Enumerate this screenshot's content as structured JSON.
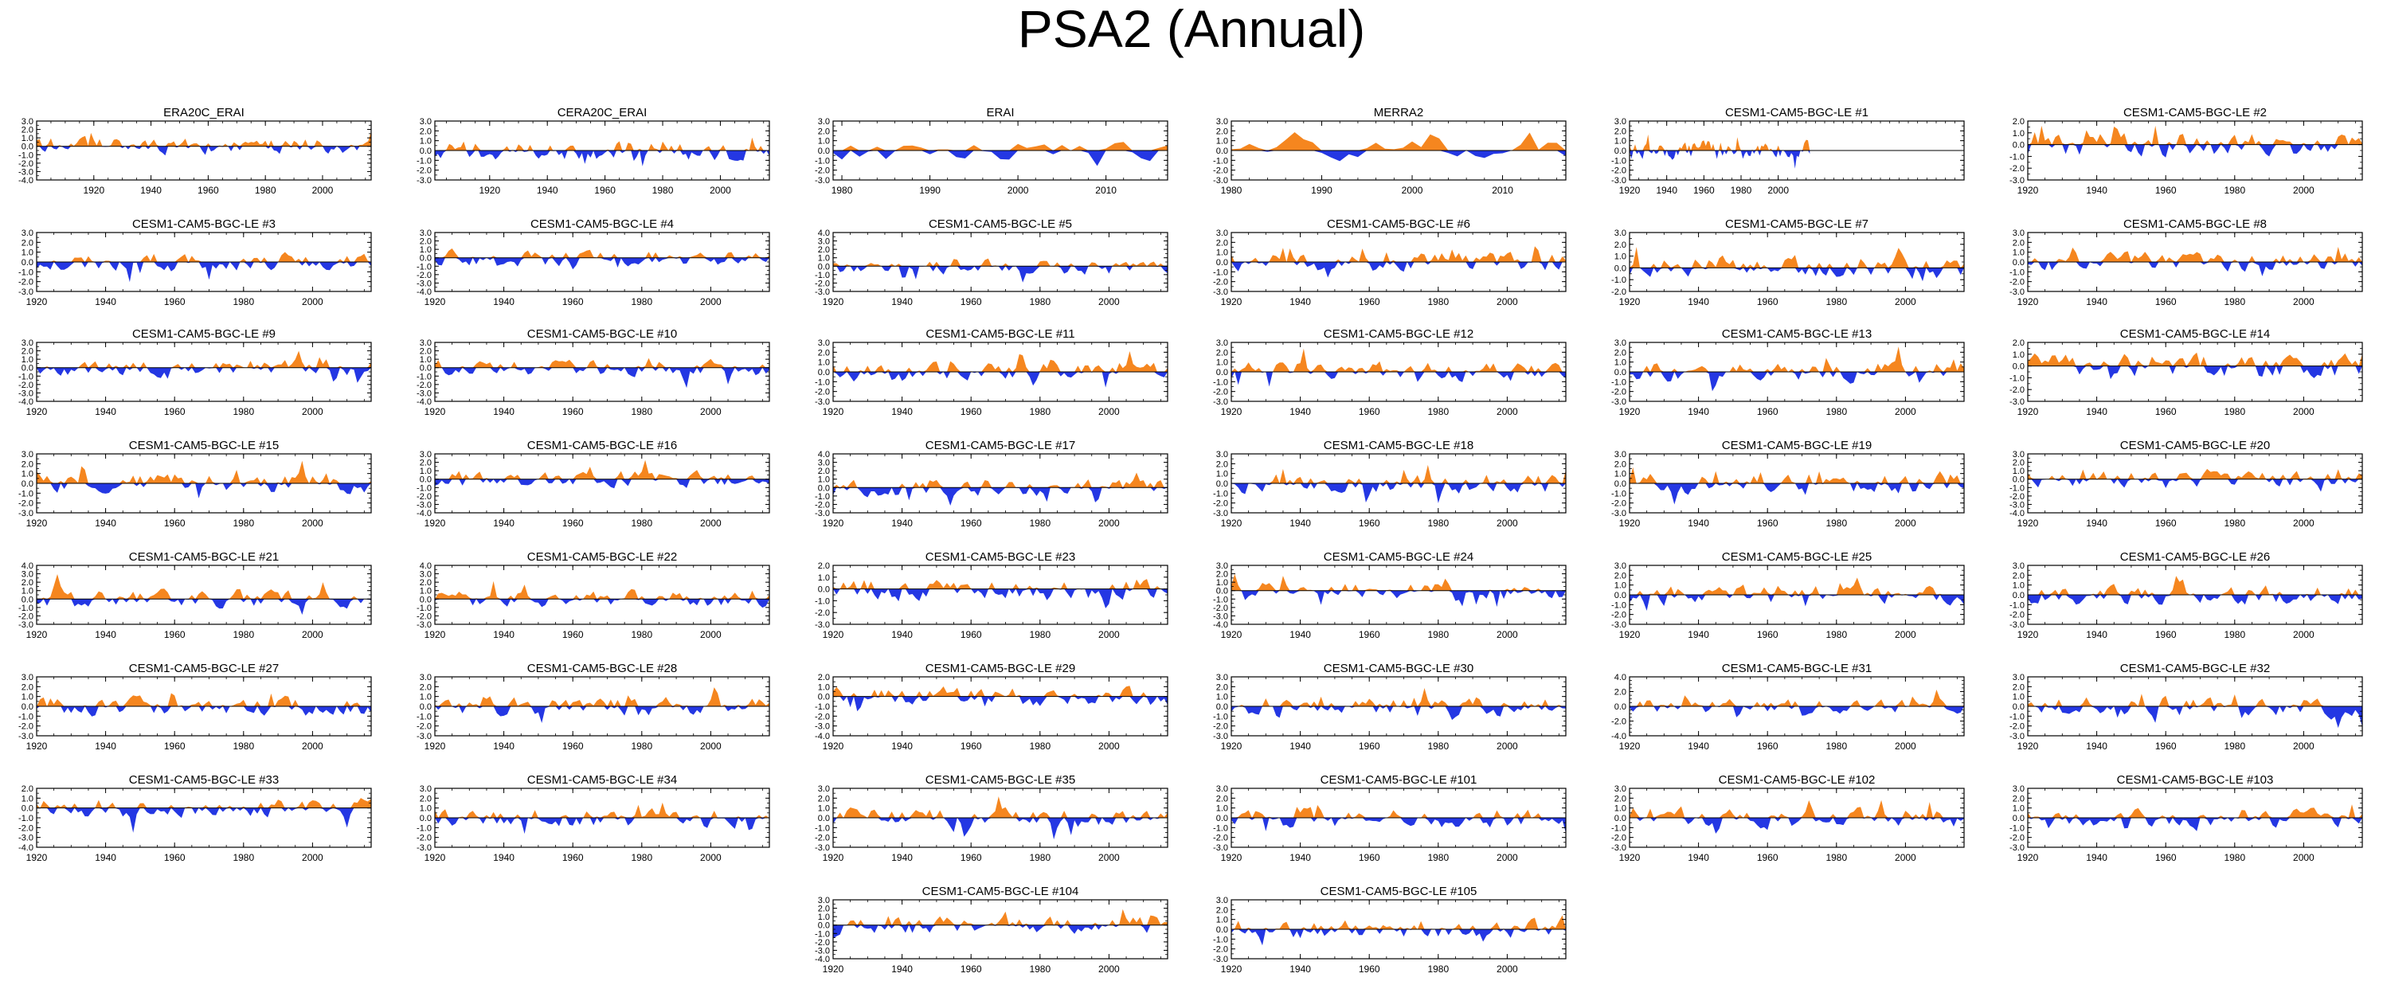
{
  "title": "PSA2 (Annual)",
  "colors": {
    "positive": "#f5861f",
    "negative": "#2437e3",
    "axis": "#000000"
  },
  "chart_data": [
    {
      "type": "area",
      "title": "ERA20C_ERAI",
      "xlim": [
        1900,
        2017
      ],
      "xticks": [
        1920,
        1940,
        1960,
        1980,
        2000
      ],
      "ylim": [
        -4,
        3
      ],
      "yticks": [
        3,
        2,
        1,
        0,
        -1,
        -2,
        -3,
        -4
      ],
      "seed": 11
    },
    {
      "type": "area",
      "title": "CERA20C_ERAI",
      "xlim": [
        1901,
        2017
      ],
      "xticks": [
        1920,
        1940,
        1960,
        1980,
        2000
      ],
      "ylim": [
        -3,
        3
      ],
      "yticks": [
        3,
        2,
        1,
        0,
        -1,
        -2,
        -3
      ],
      "seed": 12
    },
    {
      "type": "area",
      "title": "ERAI",
      "xlim": [
        1979,
        2017
      ],
      "xticks": [
        1980,
        1990,
        2000,
        2010
      ],
      "ylim": [
        -3,
        3
      ],
      "yticks": [
        3,
        2,
        1,
        0,
        -1,
        -2,
        -3
      ],
      "seed": 13
    },
    {
      "type": "area",
      "title": "MERRA2",
      "xlim": [
        1980,
        2017
      ],
      "xticks": [
        1980,
        1990,
        2000,
        2010
      ],
      "ylim": [
        -3,
        3
      ],
      "yticks": [
        3,
        2,
        1,
        0,
        -1,
        -2,
        -3
      ],
      "seed": 14
    },
    {
      "type": "area",
      "title": "CESM1-CAM5-BGC-LE #1",
      "xlim": [
        1920,
        2100
      ],
      "xticks": [
        1920,
        1940,
        1960,
        1980,
        2000
      ],
      "ylim": [
        -3,
        3
      ],
      "yticks": [
        3,
        2,
        1,
        0,
        -1,
        -2,
        -3
      ],
      "seed": 15
    },
    {
      "type": "area",
      "title": "CESM1-CAM5-BGC-LE #2",
      "xlim": [
        1920,
        2017
      ],
      "xticks": [
        1920,
        1940,
        1960,
        1980,
        2000
      ],
      "ylim": [
        -3,
        2
      ],
      "yticks": [
        2,
        1,
        0,
        -1,
        -2,
        -3
      ],
      "seed": 16
    },
    {
      "type": "area",
      "title": "CESM1-CAM5-BGC-LE #3",
      "xlim": [
        1920,
        2017
      ],
      "xticks": [
        1920,
        1940,
        1960,
        1980,
        2000
      ],
      "ylim": [
        -3,
        3
      ],
      "yticks": [
        3,
        2,
        1,
        0,
        -1,
        -2,
        -3
      ],
      "seed": 21
    },
    {
      "type": "area",
      "title": "CESM1-CAM5-BGC-LE #4",
      "xlim": [
        1920,
        2017
      ],
      "xticks": [
        1920,
        1940,
        1960,
        1980,
        2000
      ],
      "ylim": [
        -4,
        3
      ],
      "yticks": [
        3,
        2,
        1,
        0,
        -1,
        -2,
        -3,
        -4
      ],
      "seed": 22
    },
    {
      "type": "area",
      "title": "CESM1-CAM5-BGC-LE #5",
      "xlim": [
        1920,
        2017
      ],
      "xticks": [
        1920,
        1940,
        1960,
        1980,
        2000
      ],
      "ylim": [
        -3,
        4
      ],
      "yticks": [
        4,
        3,
        2,
        1,
        0,
        -1,
        -2,
        -3
      ],
      "seed": 23
    },
    {
      "type": "area",
      "title": "CESM1-CAM5-BGC-LE #6",
      "xlim": [
        1920,
        2017
      ],
      "xticks": [
        1920,
        1940,
        1960,
        1980,
        2000
      ],
      "ylim": [
        -3,
        3
      ],
      "yticks": [
        3,
        2,
        1,
        0,
        -1,
        -2,
        -3
      ],
      "seed": 24
    },
    {
      "type": "area",
      "title": "CESM1-CAM5-BGC-LE #7",
      "xlim": [
        1920,
        2017
      ],
      "xticks": [
        1920,
        1940,
        1960,
        1980,
        2000
      ],
      "ylim": [
        -2,
        3
      ],
      "yticks": [
        3,
        2,
        1,
        0,
        -1,
        -2
      ],
      "seed": 25
    },
    {
      "type": "area",
      "title": "CESM1-CAM5-BGC-LE #8",
      "xlim": [
        1920,
        2017
      ],
      "xticks": [
        1920,
        1940,
        1960,
        1980,
        2000
      ],
      "ylim": [
        -3,
        3
      ],
      "yticks": [
        3,
        2,
        1,
        0,
        -1,
        -2,
        -3
      ],
      "seed": 26
    },
    {
      "type": "area",
      "title": "CESM1-CAM5-BGC-LE #9",
      "xlim": [
        1920,
        2017
      ],
      "xticks": [
        1920,
        1940,
        1960,
        1980,
        2000
      ],
      "ylim": [
        -4,
        3
      ],
      "yticks": [
        3,
        2,
        1,
        0,
        -1,
        -2,
        -3,
        -4
      ],
      "seed": 31
    },
    {
      "type": "area",
      "title": "CESM1-CAM5-BGC-LE #10",
      "xlim": [
        1920,
        2017
      ],
      "xticks": [
        1920,
        1940,
        1960,
        1980,
        2000
      ],
      "ylim": [
        -4,
        3
      ],
      "yticks": [
        3,
        2,
        1,
        0,
        -1,
        -2,
        -3,
        -4
      ],
      "seed": 32
    },
    {
      "type": "area",
      "title": "CESM1-CAM5-BGC-LE #11",
      "xlim": [
        1920,
        2017
      ],
      "xticks": [
        1920,
        1940,
        1960,
        1980,
        2000
      ],
      "ylim": [
        -3,
        3
      ],
      "yticks": [
        3,
        2,
        1,
        0,
        -1,
        -2,
        -3
      ],
      "seed": 33
    },
    {
      "type": "area",
      "title": "CESM1-CAM5-BGC-LE #12",
      "xlim": [
        1920,
        2017
      ],
      "xticks": [
        1920,
        1940,
        1960,
        1980,
        2000
      ],
      "ylim": [
        -3,
        3
      ],
      "yticks": [
        3,
        2,
        1,
        0,
        -1,
        -2,
        -3
      ],
      "seed": 34
    },
    {
      "type": "area",
      "title": "CESM1-CAM5-BGC-LE #13",
      "xlim": [
        1920,
        2017
      ],
      "xticks": [
        1920,
        1940,
        1960,
        1980,
        2000
      ],
      "ylim": [
        -3,
        3
      ],
      "yticks": [
        3,
        2,
        1,
        0,
        -1,
        -2,
        -3
      ],
      "seed": 35
    },
    {
      "type": "area",
      "title": "CESM1-CAM5-BGC-LE #14",
      "xlim": [
        1920,
        2017
      ],
      "xticks": [
        1920,
        1940,
        1960,
        1980,
        2000
      ],
      "ylim": [
        -3,
        2
      ],
      "yticks": [
        2,
        1,
        0,
        -1,
        -2,
        -3
      ],
      "seed": 36
    },
    {
      "type": "area",
      "title": "CESM1-CAM5-BGC-LE #15",
      "xlim": [
        1920,
        2017
      ],
      "xticks": [
        1920,
        1940,
        1960,
        1980,
        2000
      ],
      "ylim": [
        -3,
        3
      ],
      "yticks": [
        3,
        2,
        1,
        0,
        -1,
        -2,
        -3
      ],
      "seed": 41
    },
    {
      "type": "area",
      "title": "CESM1-CAM5-BGC-LE #16",
      "xlim": [
        1920,
        2017
      ],
      "xticks": [
        1920,
        1940,
        1960,
        1980,
        2000
      ],
      "ylim": [
        -4,
        3
      ],
      "yticks": [
        3,
        2,
        1,
        0,
        -1,
        -2,
        -3,
        -4
      ],
      "seed": 42
    },
    {
      "type": "area",
      "title": "CESM1-CAM5-BGC-LE #17",
      "xlim": [
        1920,
        2017
      ],
      "xticks": [
        1920,
        1940,
        1960,
        1980,
        2000
      ],
      "ylim": [
        -3,
        4
      ],
      "yticks": [
        4,
        3,
        2,
        1,
        0,
        -1,
        -2,
        -3
      ],
      "seed": 43
    },
    {
      "type": "area",
      "title": "CESM1-CAM5-BGC-LE #18",
      "xlim": [
        1920,
        2017
      ],
      "xticks": [
        1920,
        1940,
        1960,
        1980,
        2000
      ],
      "ylim": [
        -3,
        3
      ],
      "yticks": [
        3,
        2,
        1,
        0,
        -1,
        -2,
        -3
      ],
      "seed": 44
    },
    {
      "type": "area",
      "title": "CESM1-CAM5-BGC-LE #19",
      "xlim": [
        1920,
        2017
      ],
      "xticks": [
        1920,
        1940,
        1960,
        1980,
        2000
      ],
      "ylim": [
        -3,
        3
      ],
      "yticks": [
        3,
        2,
        1,
        0,
        -1,
        -2,
        -3
      ],
      "seed": 45
    },
    {
      "type": "area",
      "title": "CESM1-CAM5-BGC-LE #20",
      "xlim": [
        1920,
        2017
      ],
      "xticks": [
        1920,
        1940,
        1960,
        1980,
        2000
      ],
      "ylim": [
        -4,
        3
      ],
      "yticks": [
        3,
        2,
        1,
        0,
        -1,
        -2,
        -3,
        -4
      ],
      "seed": 46
    },
    {
      "type": "area",
      "title": "CESM1-CAM5-BGC-LE #21",
      "xlim": [
        1920,
        2017
      ],
      "xticks": [
        1920,
        1940,
        1960,
        1980,
        2000
      ],
      "ylim": [
        -3,
        4
      ],
      "yticks": [
        4,
        3,
        2,
        1,
        0,
        -1,
        -2,
        -3
      ],
      "seed": 51
    },
    {
      "type": "area",
      "title": "CESM1-CAM5-BGC-LE #22",
      "xlim": [
        1920,
        2017
      ],
      "xticks": [
        1920,
        1940,
        1960,
        1980,
        2000
      ],
      "ylim": [
        -3,
        4
      ],
      "yticks": [
        4,
        3,
        2,
        1,
        0,
        -1,
        -2,
        -3
      ],
      "seed": 52
    },
    {
      "type": "area",
      "title": "CESM1-CAM5-BGC-LE #23",
      "xlim": [
        1920,
        2017
      ],
      "xticks": [
        1920,
        1940,
        1960,
        1980,
        2000
      ],
      "ylim": [
        -3,
        2
      ],
      "yticks": [
        2,
        1,
        0,
        -1,
        -2,
        -3
      ],
      "seed": 53
    },
    {
      "type": "area",
      "title": "CESM1-CAM5-BGC-LE #24",
      "xlim": [
        1920,
        2017
      ],
      "xticks": [
        1920,
        1940,
        1960,
        1980,
        2000
      ],
      "ylim": [
        -4,
        3
      ],
      "yticks": [
        3,
        2,
        1,
        0,
        -1,
        -2,
        -3,
        -4
      ],
      "seed": 54
    },
    {
      "type": "area",
      "title": "CESM1-CAM5-BGC-LE #25",
      "xlim": [
        1920,
        2017
      ],
      "xticks": [
        1920,
        1940,
        1960,
        1980,
        2000
      ],
      "ylim": [
        -3,
        3
      ],
      "yticks": [
        3,
        2,
        1,
        0,
        -1,
        -2,
        -3
      ],
      "seed": 55
    },
    {
      "type": "area",
      "title": "CESM1-CAM5-BGC-LE #26",
      "xlim": [
        1920,
        2017
      ],
      "xticks": [
        1920,
        1940,
        1960,
        1980,
        2000
      ],
      "ylim": [
        -3,
        3
      ],
      "yticks": [
        3,
        2,
        1,
        0,
        -1,
        -2,
        -3
      ],
      "seed": 56
    },
    {
      "type": "area",
      "title": "CESM1-CAM5-BGC-LE #27",
      "xlim": [
        1920,
        2017
      ],
      "xticks": [
        1920,
        1940,
        1960,
        1980,
        2000
      ],
      "ylim": [
        -3,
        3
      ],
      "yticks": [
        3,
        2,
        1,
        0,
        -1,
        -2,
        -3
      ],
      "seed": 61
    },
    {
      "type": "area",
      "title": "CESM1-CAM5-BGC-LE #28",
      "xlim": [
        1920,
        2017
      ],
      "xticks": [
        1920,
        1940,
        1960,
        1980,
        2000
      ],
      "ylim": [
        -3,
        3
      ],
      "yticks": [
        3,
        2,
        1,
        0,
        -1,
        -2,
        -3
      ],
      "seed": 62
    },
    {
      "type": "area",
      "title": "CESM1-CAM5-BGC-LE #29",
      "xlim": [
        1920,
        2017
      ],
      "xticks": [
        1920,
        1940,
        1960,
        1980,
        2000
      ],
      "ylim": [
        -4,
        2
      ],
      "yticks": [
        2,
        1,
        0,
        -1,
        -2,
        -3,
        -4
      ],
      "seed": 63
    },
    {
      "type": "area",
      "title": "CESM1-CAM5-BGC-LE #30",
      "xlim": [
        1920,
        2017
      ],
      "xticks": [
        1920,
        1940,
        1960,
        1980,
        2000
      ],
      "ylim": [
        -3,
        3
      ],
      "yticks": [
        3,
        2,
        1,
        0,
        -1,
        -2,
        -3
      ],
      "seed": 64
    },
    {
      "type": "area",
      "title": "CESM1-CAM5-BGC-LE #31",
      "xlim": [
        1920,
        2017
      ],
      "xticks": [
        1920,
        1940,
        1960,
        1980,
        2000
      ],
      "ylim": [
        -4,
        4
      ],
      "yticks": [
        4,
        2,
        0,
        -2,
        -4
      ],
      "seed": 65
    },
    {
      "type": "area",
      "title": "CESM1-CAM5-BGC-LE #32",
      "xlim": [
        1920,
        2017
      ],
      "xticks": [
        1920,
        1940,
        1960,
        1980,
        2000
      ],
      "ylim": [
        -3,
        3
      ],
      "yticks": [
        3,
        2,
        1,
        0,
        -1,
        -2,
        -3
      ],
      "seed": 66
    },
    {
      "type": "area",
      "title": "CESM1-CAM5-BGC-LE #33",
      "xlim": [
        1920,
        2017
      ],
      "xticks": [
        1920,
        1940,
        1960,
        1980,
        2000
      ],
      "ylim": [
        -4,
        2
      ],
      "yticks": [
        2,
        1,
        0,
        -1,
        -2,
        -3,
        -4
      ],
      "seed": 71
    },
    {
      "type": "area",
      "title": "CESM1-CAM5-BGC-LE #34",
      "xlim": [
        1920,
        2017
      ],
      "xticks": [
        1920,
        1940,
        1960,
        1980,
        2000
      ],
      "ylim": [
        -3,
        3
      ],
      "yticks": [
        3,
        2,
        1,
        0,
        -1,
        -2,
        -3
      ],
      "seed": 72
    },
    {
      "type": "area",
      "title": "CESM1-CAM5-BGC-LE #35",
      "xlim": [
        1920,
        2017
      ],
      "xticks": [
        1920,
        1940,
        1960,
        1980,
        2000
      ],
      "ylim": [
        -3,
        3
      ],
      "yticks": [
        3,
        2,
        1,
        0,
        -1,
        -2,
        -3
      ],
      "seed": 73
    },
    {
      "type": "area",
      "title": "CESM1-CAM5-BGC-LE #101",
      "xlim": [
        1920,
        2017
      ],
      "xticks": [
        1920,
        1940,
        1960,
        1980,
        2000
      ],
      "ylim": [
        -3,
        3
      ],
      "yticks": [
        3,
        2,
        1,
        0,
        -1,
        -2,
        -3
      ],
      "seed": 74
    },
    {
      "type": "area",
      "title": "CESM1-CAM5-BGC-LE #102",
      "xlim": [
        1920,
        2017
      ],
      "xticks": [
        1920,
        1940,
        1960,
        1980,
        2000
      ],
      "ylim": [
        -3,
        3
      ],
      "yticks": [
        3,
        2,
        1,
        0,
        -1,
        -2,
        -3
      ],
      "seed": 75
    },
    {
      "type": "area",
      "title": "CESM1-CAM5-BGC-LE #103",
      "xlim": [
        1920,
        2017
      ],
      "xticks": [
        1920,
        1940,
        1960,
        1980,
        2000
      ],
      "ylim": [
        -3,
        3
      ],
      "yticks": [
        3,
        2,
        1,
        0,
        -1,
        -2,
        -3
      ],
      "seed": 76
    },
    {
      "type": "area",
      "title": "CESM1-CAM5-BGC-LE #104",
      "xlim": [
        1920,
        2017
      ],
      "xticks": [
        1920,
        1940,
        1960,
        1980,
        2000
      ],
      "ylim": [
        -4,
        3
      ],
      "yticks": [
        3,
        2,
        1,
        0,
        -1,
        -2,
        -3,
        -4
      ],
      "seed": 81
    },
    {
      "type": "area",
      "title": "CESM1-CAM5-BGC-LE #105",
      "xlim": [
        1920,
        2017
      ],
      "xticks": [
        1920,
        1940,
        1960,
        1980,
        2000
      ],
      "ylim": [
        -3,
        3
      ],
      "yticks": [
        3,
        2,
        1,
        0,
        -1,
        -2,
        -3
      ],
      "seed": 82
    }
  ]
}
